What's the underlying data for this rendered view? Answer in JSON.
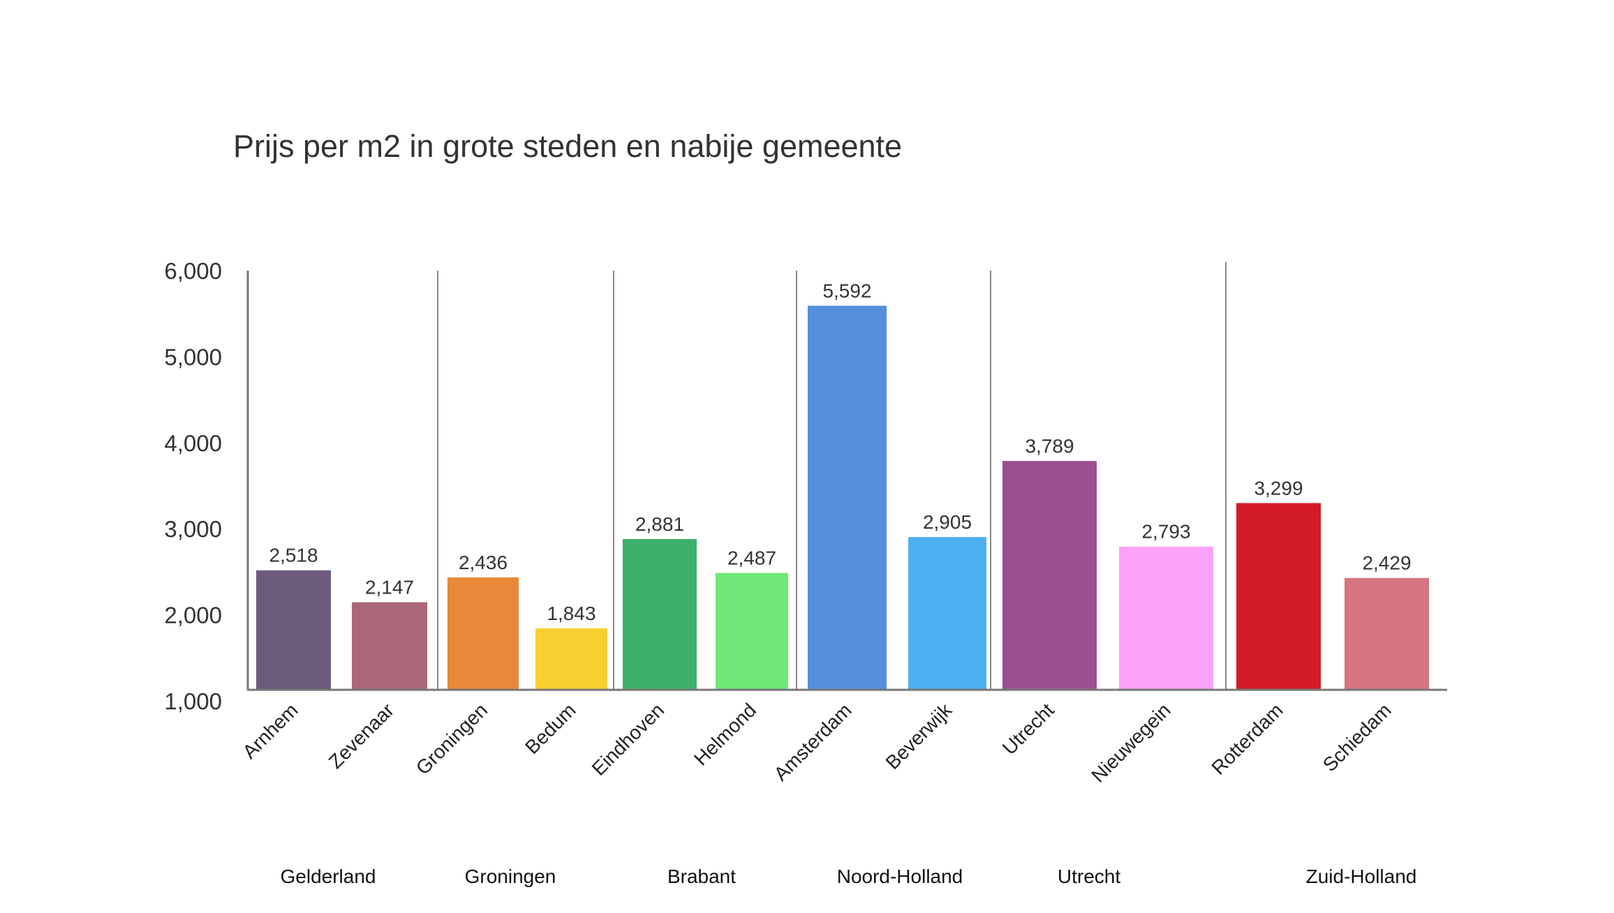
{
  "chart_data": {
    "type": "bar",
    "title": "Prijs per m2 in grote steden en nabije gemeente",
    "xlabel": "",
    "ylabel": "",
    "ylim": [
      1000,
      6000
    ],
    "yticks": [
      "6,000",
      "5,000",
      "4,000",
      "3,000",
      "2,000",
      "1,000"
    ],
    "ytick_values": [
      6000,
      5000,
      4000,
      3000,
      2000,
      1000
    ],
    "grid": false,
    "categories": [
      "Arnhem",
      "Zevenaar",
      "Groningen",
      "Bedum",
      "Eindhoven",
      "Helmond",
      "Amsterdam",
      "Beverwijk",
      "Utrecht",
      "Nieuwegein",
      "Rotterdam",
      "Schiedam"
    ],
    "values": [
      2518,
      2147,
      2436,
      1843,
      2881,
      2487,
      5592,
      2905,
      3789,
      2793,
      3299,
      2429
    ],
    "data_labels": [
      "2,518",
      "2,147",
      "2,436",
      "1,843",
      "2,881",
      "2,487",
      "5,592",
      "2,905",
      "3,789",
      "2,793",
      "3,299",
      "2,429"
    ],
    "colors": [
      "#6c5b7b",
      "#ab6878",
      "#e8893a",
      "#f6cf31",
      "#3caf6a",
      "#6fe877",
      "#558fda",
      "#4daff0",
      "#9b4f90",
      "#fca2f7",
      "#d31a28",
      "#d67680"
    ],
    "groups": [
      {
        "label": "Gelderland",
        "members": [
          "Arnhem",
          "Zevenaar"
        ]
      },
      {
        "label": "Groningen",
        "members": [
          "Groningen",
          "Bedum"
        ]
      },
      {
        "label": "Brabant",
        "members": [
          "Eindhoven",
          "Helmond"
        ]
      },
      {
        "label": "Noord-Holland",
        "members": [
          "Amsterdam",
          "Beverwijk"
        ]
      },
      {
        "label": "Utrecht",
        "members": [
          "Utrecht",
          "Nieuwegein"
        ]
      },
      {
        "label": "Zuid-Holland",
        "members": [
          "Rotterdam",
          "Schiedam"
        ]
      }
    ]
  }
}
